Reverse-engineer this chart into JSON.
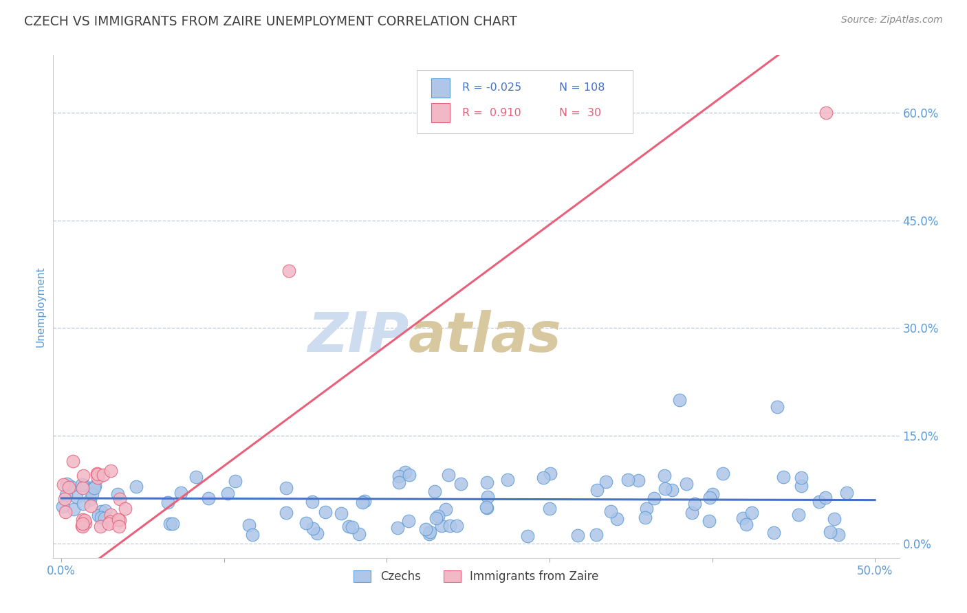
{
  "title": "CZECH VS IMMIGRANTS FROM ZAIRE UNEMPLOYMENT CORRELATION CHART",
  "source_text": "Source: ZipAtlas.com",
  "ylabel": "Unemployment",
  "xlim": [
    -0.005,
    0.515
  ],
  "ylim": [
    -0.02,
    0.68
  ],
  "ytick_vals": [
    0.0,
    0.15,
    0.3,
    0.45,
    0.6
  ],
  "ytick_labels": [
    "0.0%",
    "15.0%",
    "30.0%",
    "45.0%",
    "60.0%"
  ],
  "xtick_vals": [
    0.0,
    0.1,
    0.2,
    0.3,
    0.4,
    0.5
  ],
  "xtick_labels_show": [
    "0.0%",
    "",
    "",
    "",
    "",
    "50.0%"
  ],
  "czech_color": "#aec6e8",
  "zaire_color": "#f2b8c6",
  "czech_edge_color": "#5b9bd5",
  "zaire_edge_color": "#e8607a",
  "czech_line_color": "#4472c4",
  "zaire_line_color": "#e8607a",
  "title_color": "#404040",
  "axis_label_color": "#5b9bd5",
  "tick_label_color": "#5b9bd5",
  "watermark_zip_color": "#cddcee",
  "watermark_atlas_color": "#d8c8a0",
  "background_color": "#ffffff",
  "grid_color": "#b8c8d8",
  "source_color": "#888888",
  "legend_box_color": "#e8e8e8",
  "zaire_line_slope": 1.68,
  "zaire_line_intercept": -0.06,
  "czech_line_slope": -0.005,
  "czech_line_intercept": 0.063
}
